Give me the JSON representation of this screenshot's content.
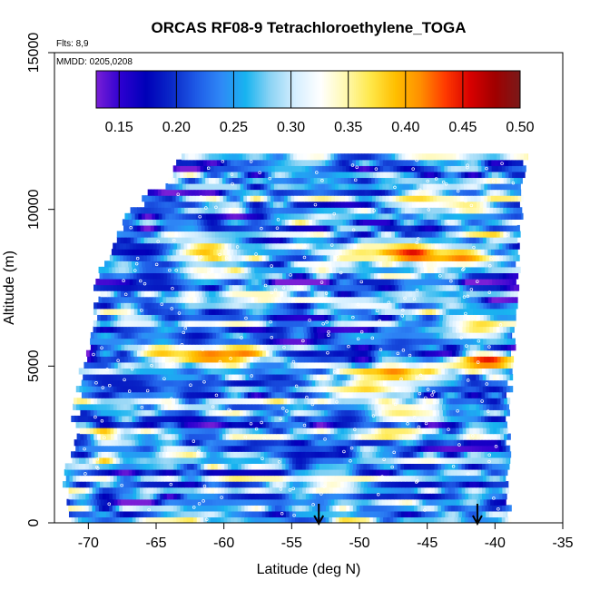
{
  "chart_data": {
    "type": "heatmap",
    "title": "ORCAS RF08-9 Tetrachloroethylene_TOGA",
    "flights_note": "Flts: 8,9",
    "dates_note": "MMDD: 0205,0208",
    "xlabel": "Latitude (deg N)",
    "ylabel": "Altitude (m)",
    "xlim": [
      -72.5,
      -35
    ],
    "ylim": [
      0,
      15000
    ],
    "x_ticks": [
      -70,
      -65,
      -60,
      -55,
      -50,
      -45,
      -40,
      -35
    ],
    "x_tick_labels": [
      "-70",
      "-65",
      "-60",
      "-55",
      "-50",
      "-45",
      "-40",
      "-35"
    ],
    "y_ticks": [
      0,
      5000,
      10000,
      15000
    ],
    "y_tick_labels": [
      "0",
      "5000",
      "10000",
      "15000"
    ],
    "colorbar": {
      "range": [
        0.13,
        0.5
      ],
      "ticks": [
        0.15,
        0.2,
        0.25,
        0.3,
        0.35,
        0.4,
        0.45,
        0.5
      ],
      "tick_labels": [
        "0.15",
        "0.20",
        "0.25",
        "0.30",
        "0.35",
        "0.40",
        "0.45",
        "0.50"
      ],
      "colors": [
        "#7a1fd6",
        "#2b00d0",
        "#0000b8",
        "#0a28c8",
        "#1e5ae6",
        "#2f88f6",
        "#18b4f0",
        "#8fd4f4",
        "#d6efff",
        "#ffffff",
        "#fff9b0",
        "#ffe84a",
        "#ffbf00",
        "#ff8f00",
        "#ff3a00",
        "#d80000",
        "#a00000",
        "#7a1a1a"
      ]
    },
    "boundary": {
      "left_lats": [
        -71.5,
        -71.6,
        -71.3,
        -71.0,
        -70.8,
        -70.4,
        -70.0,
        -69.5,
        -69.3,
        -68.8,
        -67.5,
        -65.5,
        -63.5
      ],
      "left_alts": [
        0,
        1000,
        2000,
        3000,
        4000,
        5000,
        6000,
        7000,
        8000,
        8400,
        9500,
        10500,
        11000
      ],
      "right_lats": [
        -39.0,
        -39.0,
        -39.0,
        -38.7,
        -38.7,
        -38.3,
        -38.3,
        -38.3,
        -38.0,
        -37.8
      ],
      "right_alts": [
        0,
        2000,
        4000,
        5000,
        6000,
        7000,
        8000,
        9000,
        10500,
        11700
      ]
    },
    "top_altitude": 11700,
    "arrow_latitudes": [
      -53.0,
      -41.3
    ],
    "features": [
      {
        "lat": -61.0,
        "alt": 5350,
        "value": 0.44
      },
      {
        "lat": -58.5,
        "alt": 5450,
        "value": 0.42
      },
      {
        "lat": -64.5,
        "alt": 5500,
        "value": 0.4
      },
      {
        "lat": -47.5,
        "alt": 4800,
        "value": 0.42
      },
      {
        "lat": -49.5,
        "alt": 4300,
        "value": 0.38
      },
      {
        "lat": -40.5,
        "alt": 5200,
        "value": 0.45
      },
      {
        "lat": -41.0,
        "alt": 6300,
        "value": 0.38
      },
      {
        "lat": -61.5,
        "alt": 8700,
        "value": 0.4
      },
      {
        "lat": -62.0,
        "alt": 8000,
        "value": 0.36
      },
      {
        "lat": -45.5,
        "alt": 10400,
        "value": 0.38
      },
      {
        "lat": -42.0,
        "alt": 10100,
        "value": 0.36
      },
      {
        "lat": -50.0,
        "alt": 8600,
        "value": 0.36
      },
      {
        "lat": -46.0,
        "alt": 8600,
        "value": 0.46
      },
      {
        "lat": -42.5,
        "alt": 8500,
        "value": 0.42
      },
      {
        "lat": -66.0,
        "alt": 8600,
        "value": 0.17
      },
      {
        "lat": -65.0,
        "alt": 7800,
        "value": 0.18
      },
      {
        "lat": -66.5,
        "alt": 4400,
        "value": 0.19
      },
      {
        "lat": -62.0,
        "alt": 4400,
        "value": 0.2
      },
      {
        "lat": -56.0,
        "alt": 4600,
        "value": 0.19
      },
      {
        "lat": -50.5,
        "alt": 3400,
        "value": 0.17
      },
      {
        "lat": -53.0,
        "alt": 2200,
        "value": 0.18
      },
      {
        "lat": -62.0,
        "alt": 6000,
        "value": 0.18
      },
      {
        "lat": -47.0,
        "alt": 5700,
        "value": 0.2
      },
      {
        "lat": -47.0,
        "alt": 3500,
        "value": 0.36
      },
      {
        "lat": -52.0,
        "alt": 1200,
        "value": 0.34
      },
      {
        "lat": -57.0,
        "alt": 7200,
        "value": 0.35
      }
    ],
    "grid": false,
    "legend": "top"
  }
}
